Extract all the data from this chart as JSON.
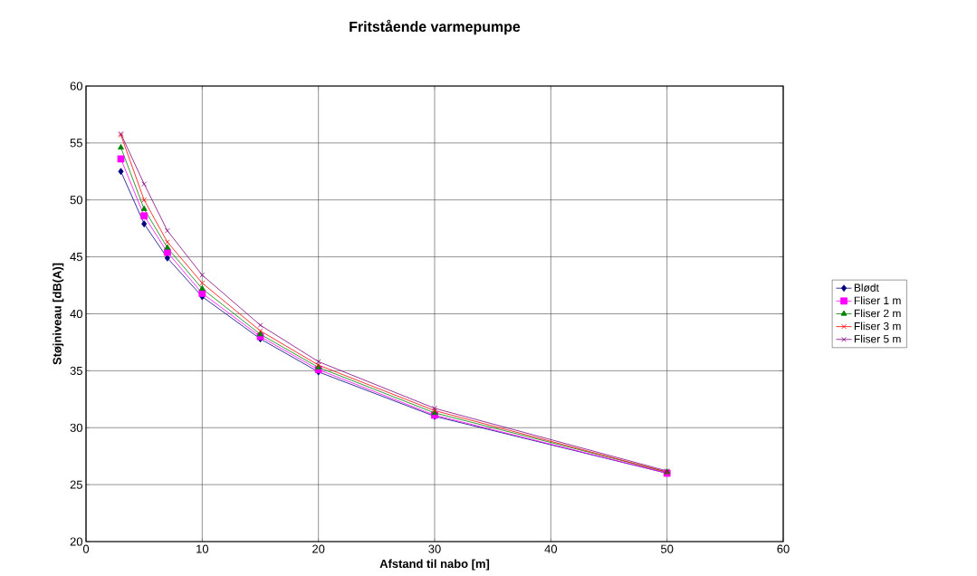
{
  "chart_data": {
    "type": "line",
    "title": "Fritstående varmepumpe",
    "xlabel": "Afstand til nabo [m]",
    "ylabel": "Støjniveau [dB(A)]",
    "x": [
      3,
      5,
      7,
      10,
      15,
      20,
      30,
      50
    ],
    "series": [
      {
        "name": "Blødt",
        "color": "#000080",
        "marker": "diamond",
        "values": [
          52.5,
          47.9,
          44.9,
          41.5,
          37.8,
          34.9,
          31.0,
          26.0
        ]
      },
      {
        "name": "Fliser 1 m",
        "color": "#ff00ff",
        "marker": "square",
        "values": [
          53.6,
          48.6,
          45.4,
          41.8,
          38.0,
          35.1,
          31.1,
          26.0
        ]
      },
      {
        "name": "Fliser 2 m",
        "color": "#008000",
        "marker": "triangle",
        "values": [
          54.6,
          49.2,
          45.8,
          42.2,
          38.2,
          35.3,
          31.3,
          26.1
        ]
      },
      {
        "name": "Fliser 3 m",
        "color": "#ff0000",
        "marker": "cross",
        "values": [
          55.7,
          50.0,
          46.3,
          42.7,
          38.5,
          35.5,
          31.5,
          26.1
        ]
      },
      {
        "name": "Fliser 5 m",
        "color": "#800080",
        "marker": "cross",
        "values": [
          55.8,
          51.4,
          47.3,
          43.4,
          39.0,
          35.8,
          31.7,
          26.2
        ]
      }
    ],
    "xlim": [
      0,
      60
    ],
    "xticks": [
      0,
      10,
      20,
      30,
      40,
      50,
      60
    ],
    "ylim": [
      20,
      60
    ],
    "yticks": [
      20,
      25,
      30,
      35,
      40,
      45,
      50,
      55,
      60
    ],
    "grid": true,
    "legend": "right",
    "line_style": "solid"
  }
}
